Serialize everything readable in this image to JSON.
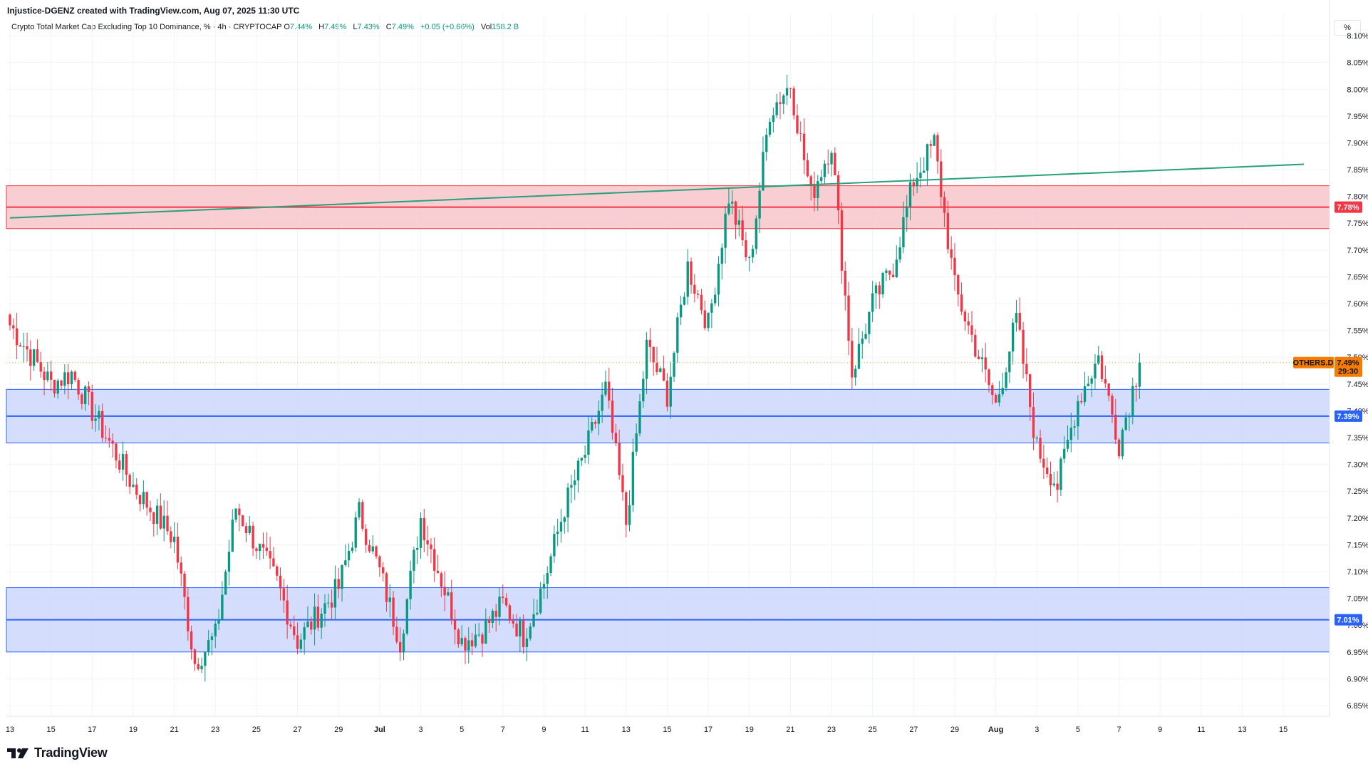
{
  "header": {
    "credit": "Injustice-DGENZ created with TradingView.com, Aug 07, 2025 11:30 UTC",
    "symbol": "Crypto Total Market Cap Excluding Top 10 Dominance, % · 4h · CRYPTOCAP",
    "o_label": "O",
    "o_value": "7.44%",
    "h_label": "H",
    "h_value": "7.49%",
    "l_label": "L",
    "l_value": "7.43%",
    "c_label": "C",
    "c_value": "7.49%",
    "change": "+0.05 (+0.66%)",
    "vol_label": "Vol",
    "vol_value": "158.2 B",
    "unit": "%"
  },
  "footer": {
    "brand": "TradingView"
  },
  "colors": {
    "up": "#089981",
    "down": "#f23645",
    "resistance_zone": "#f7c6cb",
    "resistance_line": "#f23645",
    "support_zone": "#cdd8fb",
    "support_line": "#2962ff",
    "trendline": "#26a17b",
    "symbol_tag": "#f57c00"
  },
  "chart_data": {
    "type": "candlestick",
    "timeframe": "4h",
    "y_unit": "%",
    "ylim": [
      6.83,
      8.14
    ],
    "y_ticks": [
      "8.10%",
      "8.05%",
      "8.00%",
      "7.95%",
      "7.90%",
      "7.85%",
      "7.80%",
      "7.75%",
      "7.70%",
      "7.65%",
      "7.60%",
      "7.55%",
      "7.50%",
      "7.45%",
      "7.40%",
      "7.35%",
      "7.30%",
      "7.25%",
      "7.20%",
      "7.15%",
      "7.10%",
      "7.05%",
      "7.00%",
      "6.95%",
      "6.90%",
      "6.85%"
    ],
    "x_ticks": [
      "13",
      "15",
      "17",
      "19",
      "21",
      "23",
      "25",
      "27",
      "29",
      "Jul",
      "3",
      "5",
      "7",
      "9",
      "11",
      "13",
      "15",
      "17",
      "19",
      "21",
      "23",
      "25",
      "27",
      "29",
      "Aug",
      "3",
      "5",
      "7",
      "9",
      "11",
      "13",
      "15"
    ],
    "x_range": [
      "2025-06-13",
      "2025-08-15"
    ],
    "key_points": [
      {
        "date": "2025-06-13",
        "value": 7.56
      },
      {
        "date": "2025-06-15",
        "value": 7.45
      },
      {
        "date": "2025-06-16",
        "value": 7.47
      },
      {
        "date": "2025-06-19",
        "value": 7.26
      },
      {
        "date": "2025-06-21",
        "value": 7.16
      },
      {
        "date": "2025-06-22",
        "value": 6.93
      },
      {
        "date": "2025-06-23",
        "value": 6.98
      },
      {
        "date": "2025-06-24",
        "value": 7.22
      },
      {
        "date": "2025-06-26",
        "value": 7.08
      },
      {
        "date": "2025-06-27",
        "value": 6.97
      },
      {
        "date": "2025-06-29",
        "value": 7.07
      },
      {
        "date": "2025-06-30",
        "value": 7.21
      },
      {
        "date": "2025-07-01",
        "value": 7.1
      },
      {
        "date": "2025-07-02",
        "value": 6.97
      },
      {
        "date": "2025-07-03",
        "value": 7.2
      },
      {
        "date": "2025-07-05",
        "value": 6.97
      },
      {
        "date": "2025-07-06",
        "value": 6.99
      },
      {
        "date": "2025-07-07",
        "value": 7.04
      },
      {
        "date": "2025-07-08",
        "value": 6.98
      },
      {
        "date": "2025-07-09",
        "value": 7.08
      },
      {
        "date": "2025-07-10",
        "value": 7.22
      },
      {
        "date": "2025-07-11",
        "value": 7.32
      },
      {
        "date": "2025-07-12",
        "value": 7.44
      },
      {
        "date": "2025-07-13",
        "value": 7.19
      },
      {
        "date": "2025-07-14",
        "value": 7.52
      },
      {
        "date": "2025-07-15",
        "value": 7.43
      },
      {
        "date": "2025-07-16",
        "value": 7.67
      },
      {
        "date": "2025-07-17",
        "value": 7.56
      },
      {
        "date": "2025-07-18",
        "value": 7.8
      },
      {
        "date": "2025-07-19",
        "value": 7.67
      },
      {
        "date": "2025-07-20",
        "value": 7.96
      },
      {
        "date": "2025-07-21",
        "value": 8.01
      },
      {
        "date": "2025-07-22",
        "value": 7.8
      },
      {
        "date": "2025-07-23",
        "value": 7.9
      },
      {
        "date": "2025-07-24",
        "value": 7.47
      },
      {
        "date": "2025-07-25",
        "value": 7.6
      },
      {
        "date": "2025-07-26",
        "value": 7.67
      },
      {
        "date": "2025-07-27",
        "value": 7.83
      },
      {
        "date": "2025-07-28",
        "value": 7.9
      },
      {
        "date": "2025-07-29",
        "value": 7.63
      },
      {
        "date": "2025-07-30",
        "value": 7.52
      },
      {
        "date": "2025-07-31",
        "value": 7.41
      },
      {
        "date": "2025-08-01",
        "value": 7.57
      },
      {
        "date": "2025-08-02",
        "value": 7.33
      },
      {
        "date": "2025-08-03",
        "value": 7.26
      },
      {
        "date": "2025-08-04",
        "value": 7.42
      },
      {
        "date": "2025-08-05",
        "value": 7.5
      },
      {
        "date": "2025-08-06",
        "value": 7.34
      },
      {
        "date": "2025-08-07",
        "value": 7.49
      }
    ],
    "resistance_zone": {
      "low": 7.74,
      "high": 7.82,
      "line": 7.78,
      "label": "7.78%"
    },
    "support_zone_upper": {
      "low": 7.34,
      "high": 7.44,
      "line": 7.39,
      "label": "7.39%"
    },
    "support_zone_lower": {
      "low": 6.95,
      "high": 7.07,
      "line": 7.01,
      "label": "7.01%"
    },
    "trendline": {
      "start": {
        "date": "2025-06-13",
        "value": 7.76
      },
      "end": {
        "date": "2025-08-15",
        "value": 7.86
      }
    },
    "last_price": {
      "symbol": "OTHERS.D",
      "value": 7.49,
      "label": "7.49%",
      "countdown": "29:30"
    }
  }
}
